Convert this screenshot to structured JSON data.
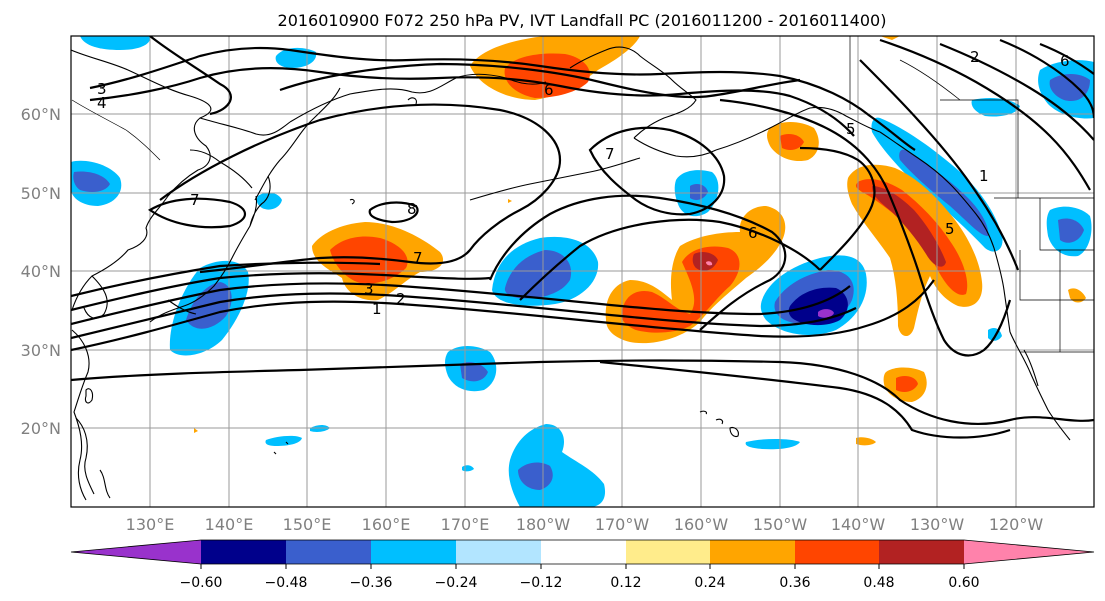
{
  "title": "2016010900 F072 250 hPa PV, IVT Landfall PC (2016011200 - 2016011400)",
  "lat_labels": [
    "60°N",
    "50°N",
    "40°N",
    "30°N",
    "20°N"
  ],
  "lon_labels": [
    "130°E",
    "140°E",
    "150°E",
    "160°E",
    "170°E",
    "180°W",
    "170°W",
    "160°W",
    "150°W",
    "140°W",
    "130°W",
    "120°W"
  ],
  "contour_labels": [
    "3",
    "4",
    "6",
    "7",
    "8",
    "7",
    "6",
    "5",
    "7",
    "3",
    "2",
    "1",
    "1",
    "5",
    "2",
    "6"
  ],
  "colorbar": {
    "tick_labels": [
      "−0.60",
      "−0.48",
      "−0.36",
      "−0.24",
      "−0.12",
      "0.12",
      "0.24",
      "0.36",
      "0.48",
      "0.60"
    ],
    "colors": [
      "#9932cc",
      "#00008b",
      "#3a5fcd",
      "#00bfff",
      "#b2e5ff",
      "#ffffff",
      "#ffec8b",
      "#ffa500",
      "#ff4500",
      "#b22222",
      "#ff82ab"
    ]
  },
  "chart_data": {
    "type": "map",
    "projection": "PlateCarree",
    "lon_range": [
      120,
      250
    ],
    "lat_range": [
      10,
      70
    ],
    "gridlines": true,
    "variable": "250 hPa PV anomaly regressed on IVT landfall PC (shaded), 250 hPa PV (contours, PVU)",
    "contour_levels": [
      1,
      2,
      3,
      4,
      5,
      6,
      7,
      8
    ],
    "shading_levels": [
      -0.6,
      -0.48,
      -0.36,
      -0.24,
      -0.12,
      0.12,
      0.24,
      0.36,
      0.48,
      0.6
    ]
  }
}
